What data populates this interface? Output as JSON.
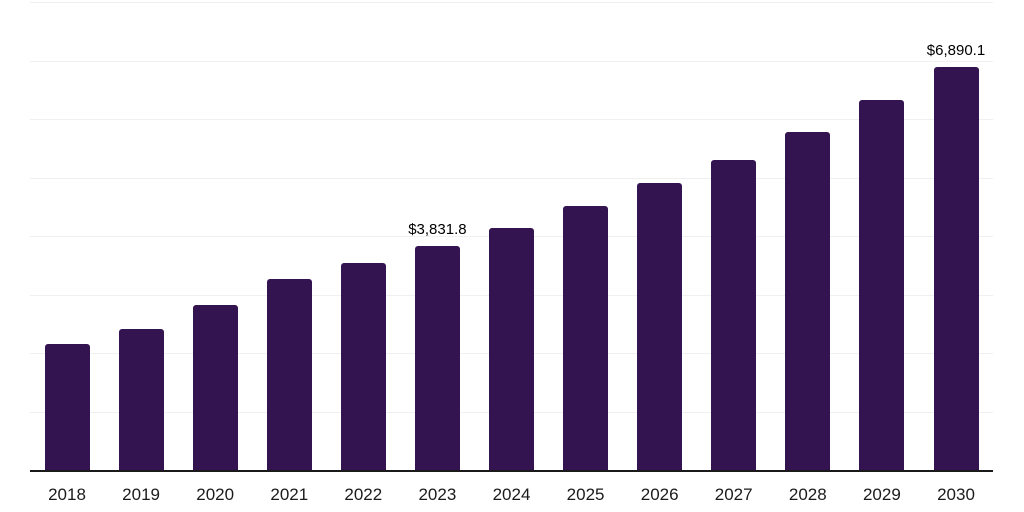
{
  "chart_data": {
    "type": "bar",
    "categories": [
      "2018",
      "2019",
      "2020",
      "2021",
      "2022",
      "2023",
      "2024",
      "2025",
      "2026",
      "2027",
      "2028",
      "2029",
      "2030"
    ],
    "values": [
      2150,
      2410,
      2820,
      3260,
      3540,
      3831.8,
      4140,
      4520,
      4900,
      5300,
      5780,
      6320,
      6890.1
    ],
    "point_labels": [
      null,
      null,
      null,
      null,
      null,
      "$3,831.8",
      null,
      null,
      null,
      null,
      null,
      null,
      "$6,890.1"
    ],
    "title": "",
    "xlabel": "",
    "ylabel": "",
    "ylim": [
      0,
      8000
    ],
    "gridline_interval": 1000,
    "grid": true,
    "legend_position": "none",
    "colors": {
      "bar": "#341450",
      "axis": "#1a1a1a",
      "gridline": "#f0f0f2",
      "x_label_text": "#1b1b1b",
      "data_label_text": "#000000"
    }
  }
}
